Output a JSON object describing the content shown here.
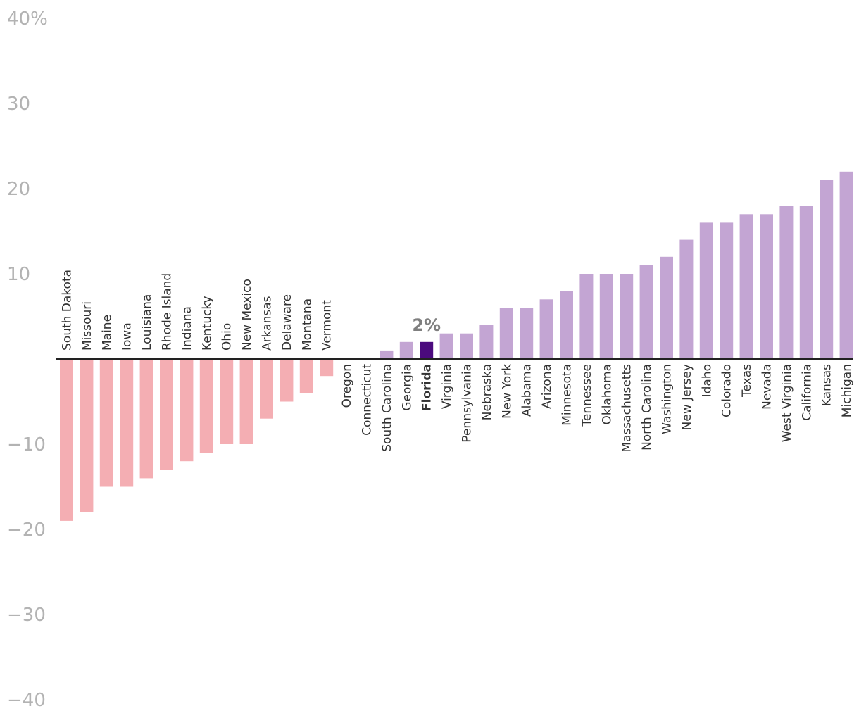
{
  "chart_data": {
    "type": "bar",
    "categories": [
      "South Dakota",
      "Missouri",
      "Maine",
      "Iowa",
      "Louisiana",
      "Rhode Island",
      "Indiana",
      "Kentucky",
      "Ohio",
      "New Mexico",
      "Arkansas",
      "Delaware",
      "Montana",
      "Vermont",
      "Oregon",
      "Connecticut",
      "South Carolina",
      "Georgia",
      "Florida",
      "Virginia",
      "Pennsylvania",
      "Nebraska",
      "New York",
      "Alabama",
      "Arizona",
      "Minnesota",
      "Tennessee",
      "Oklahoma",
      "Massachusetts",
      "North Carolina",
      "Washington",
      "New Jersey",
      "Idaho",
      "Colorado",
      "Texas",
      "Nevada",
      "West Virginia",
      "California",
      "Kansas",
      "Michigan"
    ],
    "values": [
      -19,
      -18,
      -15,
      -15,
      -14,
      -13,
      -12,
      -11,
      -10,
      -10,
      -7,
      -5,
      -4,
      -2,
      0,
      0,
      1,
      2,
      2,
      3,
      3,
      4,
      6,
      6,
      7,
      8,
      10,
      10,
      10,
      11,
      12,
      14,
      16,
      16,
      17,
      17,
      18,
      18,
      21,
      22
    ],
    "ylim": [
      -40,
      40
    ],
    "yticks": [
      40,
      30,
      20,
      10,
      -10,
      -20,
      -30,
      -40
    ],
    "ytick_labels": [
      "40%",
      "30",
      "20",
      "10",
      "−10",
      "−20",
      "−30",
      "−40"
    ],
    "highlight": "Florida",
    "highlight_label": "2%",
    "colors": {
      "negative": "#f4aeb3",
      "positive": "#c3a5d3",
      "highlight": "#4b0a7e",
      "axis": "#222222",
      "tick_text": "#b3b3b3",
      "label_text": "#333333",
      "data_label": "#7f7f7f"
    }
  }
}
